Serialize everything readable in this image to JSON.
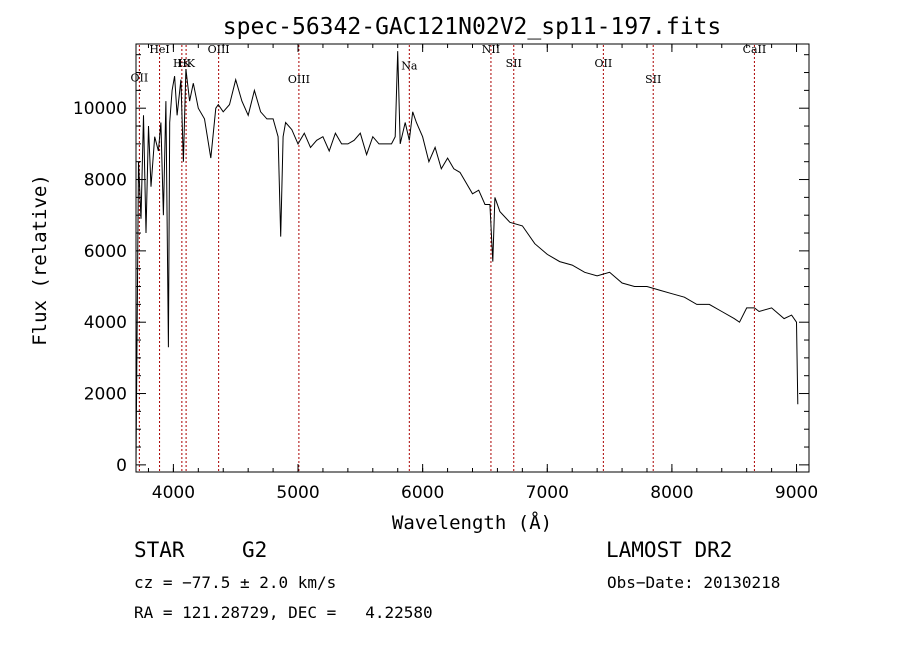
{
  "chart_data": {
    "type": "line",
    "title": "spec-56342-GAC121N02V2_sp11-197.fits",
    "xlabel": "Wavelength (Å)",
    "ylabel": "Flux (relative)",
    "xlim": [
      3700,
      9100
    ],
    "ylim": [
      -200,
      11800
    ],
    "xticks": [
      4000,
      5000,
      6000,
      7000,
      8000,
      9000
    ],
    "yticks": [
      0,
      2000,
      4000,
      6000,
      8000,
      10000
    ],
    "grid": false,
    "line_color": "#000000",
    "marker_color": "#aa0000",
    "lines": [
      {
        "label": "OII",
        "x": 3727,
        "label_y": 10750
      },
      {
        "label": "HeI",
        "x": 3889,
        "label_y": 11550
      },
      {
        "label": "HK",
        "x": 4068,
        "label_y": 11150
      },
      {
        "label": "HK",
        "x": 4102,
        "label_y": 11150
      },
      {
        "label": "OIII",
        "x": 4363,
        "label_y": 11550
      },
      {
        "label": "OIII",
        "x": 5007,
        "label_y": 10700
      },
      {
        "label": "Na",
        "x": 5893,
        "label_y": 11080
      },
      {
        "label": "NII",
        "x": 6548,
        "label_y": 11550
      },
      {
        "label": "SII",
        "x": 6731,
        "label_y": 11150
      },
      {
        "label": "OII",
        "x": 7450,
        "label_y": 11150
      },
      {
        "label": "SII",
        "x": 7850,
        "label_y": 10700
      },
      {
        "label": "CaII",
        "x": 8662,
        "label_y": 11550
      }
    ],
    "spectrum": {
      "x": [
        3700,
        3720,
        3740,
        3760,
        3780,
        3800,
        3820,
        3850,
        3880,
        3900,
        3920,
        3940,
        3960,
        3970,
        3990,
        4010,
        4030,
        4060,
        4080,
        4100,
        4130,
        4160,
        4200,
        4250,
        4300,
        4340,
        4360,
        4400,
        4450,
        4500,
        4550,
        4600,
        4650,
        4700,
        4750,
        4800,
        4840,
        4861,
        4880,
        4900,
        4950,
        5000,
        5050,
        5100,
        5150,
        5200,
        5250,
        5300,
        5350,
        5400,
        5450,
        5500,
        5550,
        5600,
        5650,
        5700,
        5750,
        5780,
        5800,
        5820,
        5860,
        5893,
        5920,
        5950,
        6000,
        6050,
        6100,
        6150,
        6200,
        6250,
        6300,
        6350,
        6400,
        6450,
        6500,
        6540,
        6563,
        6580,
        6620,
        6700,
        6800,
        6900,
        7000,
        7100,
        7200,
        7300,
        7400,
        7500,
        7600,
        7700,
        7800,
        7900,
        8000,
        8100,
        8200,
        8300,
        8400,
        8500,
        8542,
        8600,
        8662,
        8700,
        8800,
        8900,
        8960,
        9000,
        9010
      ],
      "y": [
        0,
        8500,
        6900,
        9800,
        6500,
        9500,
        7800,
        9200,
        8800,
        9600,
        7000,
        10200,
        3300,
        9600,
        10500,
        10900,
        9800,
        10800,
        8500,
        11100,
        10200,
        10700,
        10000,
        9700,
        8600,
        10000,
        10100,
        9900,
        10100,
        10800,
        10200,
        9800,
        10500,
        9900,
        9700,
        9700,
        9200,
        6400,
        9200,
        9600,
        9400,
        9000,
        9300,
        8900,
        9100,
        9200,
        8800,
        9300,
        9000,
        9000,
        9100,
        9300,
        8700,
        9200,
        9000,
        9000,
        9000,
        9200,
        11600,
        9000,
        9600,
        9100,
        9900,
        9600,
        9200,
        8500,
        8900,
        8300,
        8600,
        8300,
        8200,
        7900,
        7600,
        7700,
        7300,
        7300,
        5700,
        7500,
        7100,
        6800,
        6700,
        6200,
        5900,
        5700,
        5600,
        5400,
        5300,
        5400,
        5100,
        5000,
        5000,
        4900,
        4800,
        4700,
        4500,
        4500,
        4300,
        4100,
        4000,
        4400,
        4400,
        4300,
        4400,
        4100,
        4200,
        4000,
        1700
      ]
    }
  },
  "info": {
    "object_class": "STAR",
    "subclass": "G2",
    "survey": "LAMOST DR2",
    "redshift_text": "cz = −77.5 ± 2.0 km/s",
    "obs_date_text": "Obs−Date: 20130218",
    "coords_text": "RA = 121.28729, DEC =   4.22580"
  }
}
